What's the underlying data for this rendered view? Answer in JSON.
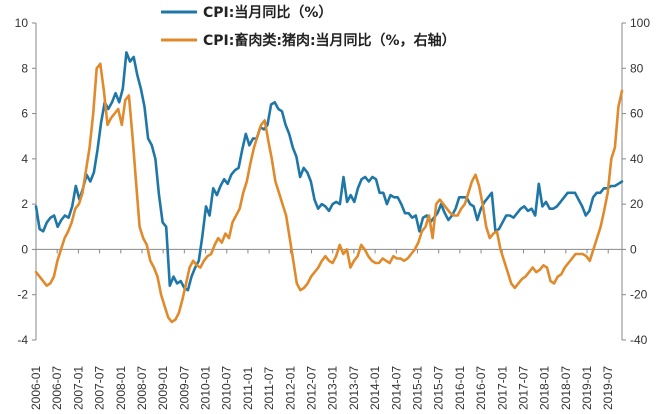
{
  "chart_data": {
    "type": "line",
    "title": "",
    "xlabel": "",
    "ylabel_left": "",
    "ylabel_right": "",
    "ylim_left": [
      -4,
      10
    ],
    "ylim_right": [
      -40,
      100
    ],
    "yticks_left": [
      -4,
      -2,
      0,
      2,
      4,
      6,
      8,
      10
    ],
    "yticks_right": [
      -40,
      -20,
      0,
      20,
      40,
      60,
      80,
      100
    ],
    "x_tick_labels": [
      "2006-01",
      "2006-07",
      "2007-01",
      "2007-07",
      "2008-01",
      "2008-07",
      "2009-01",
      "2009-07",
      "2010-01",
      "2010-07",
      "2011-01",
      "2011-07",
      "2012-01",
      "2012-07",
      "2013-01",
      "2013-07",
      "2014-01",
      "2014-07",
      "2015-01",
      "2015-07",
      "2016-01",
      "2016-07",
      "2017-01",
      "2017-07",
      "2018-01",
      "2018-07",
      "2019-01",
      "2019-07"
    ],
    "grid": false,
    "legend_position": "top-center",
    "series": [
      {
        "name": "CPI:当月同比（%）",
        "axis": "left",
        "color": "#1f77a8",
        "values": [
          1.9,
          0.9,
          0.8,
          1.2,
          1.4,
          1.5,
          1.0,
          1.3,
          1.5,
          1.4,
          1.9,
          2.8,
          2.2,
          2.7,
          3.3,
          3.0,
          3.4,
          4.4,
          5.6,
          6.5,
          6.2,
          6.5,
          6.9,
          6.5,
          7.1,
          8.7,
          8.3,
          8.5,
          7.7,
          7.1,
          6.3,
          4.9,
          4.6,
          4.0,
          2.4,
          1.2,
          1.0,
          -1.6,
          -1.2,
          -1.5,
          -1.4,
          -1.7,
          -1.8,
          -1.2,
          -0.8,
          -0.5,
          0.6,
          1.9,
          1.5,
          2.7,
          2.4,
          2.8,
          3.1,
          2.9,
          3.3,
          3.5,
          3.6,
          4.4,
          5.1,
          4.6,
          4.9,
          4.9,
          5.4,
          5.3,
          5.5,
          6.4,
          6.5,
          6.2,
          6.1,
          5.5,
          5.1,
          4.5,
          4.1,
          3.2,
          3.6,
          3.4,
          3.0,
          2.2,
          1.8,
          2.0,
          1.9,
          1.7,
          2.0,
          2.1,
          2.0,
          3.2,
          2.1,
          2.4,
          2.1,
          2.7,
          3.1,
          3.2,
          3.0,
          3.2,
          3.1,
          2.5,
          2.5,
          2.0,
          2.4,
          2.3,
          2.3,
          2.0,
          1.6,
          1.6,
          1.4,
          1.5,
          0.8,
          1.4,
          1.5,
          1.2,
          1.4,
          1.6,
          2.0,
          1.6,
          1.3,
          1.5,
          1.8,
          2.3,
          2.3,
          2.3,
          2.0,
          1.9,
          1.3,
          1.8,
          2.1,
          2.3,
          2.5,
          0.8,
          0.9,
          1.2,
          1.5,
          1.5,
          1.4,
          1.6,
          1.8,
          1.9,
          1.7,
          1.8,
          1.5,
          2.9,
          1.9,
          2.1,
          1.8,
          1.8,
          1.9,
          2.1,
          2.3,
          2.5,
          2.5,
          2.5,
          2.2,
          1.9,
          1.5,
          1.7,
          2.3,
          2.5,
          2.5,
          2.7,
          2.7,
          2.8,
          2.8,
          2.9,
          3.0
        ]
      },
      {
        "name": "CPI:畜肉类:猪肉:当月同比（%，右轴）",
        "axis": "right",
        "color": "#e08a2c",
        "values": [
          -10,
          -12,
          -14,
          -16,
          -15,
          -12,
          -5,
          0,
          5,
          8,
          12,
          18,
          20,
          25,
          35,
          45,
          60,
          80,
          82,
          70,
          55,
          58,
          60,
          62,
          55,
          66,
          68,
          50,
          30,
          10,
          5,
          2,
          -5,
          -8,
          -12,
          -20,
          -25,
          -30,
          -32,
          -31,
          -28,
          -22,
          -15,
          -8,
          -5,
          -7,
          -8,
          -5,
          -3,
          -2,
          2,
          5,
          3,
          7,
          5,
          12,
          15,
          18,
          25,
          30,
          38,
          45,
          50,
          55,
          57,
          48,
          40,
          30,
          25,
          20,
          15,
          5,
          -5,
          -15,
          -18,
          -17,
          -15,
          -12,
          -10,
          -8,
          -5,
          -3,
          -5,
          -6,
          -3,
          2,
          -2,
          0,
          -8,
          -5,
          -3,
          2,
          0,
          -3,
          -5,
          -6,
          -6,
          -4,
          -5,
          -6,
          -3,
          -4,
          -4,
          -5,
          -4,
          -2,
          0,
          3,
          8,
          10,
          15,
          5,
          20,
          22,
          20,
          18,
          16,
          15,
          15,
          18,
          20,
          25,
          30,
          33,
          28,
          20,
          10,
          5,
          7,
          8,
          0,
          -5,
          -10,
          -15,
          -17,
          -15,
          -13,
          -12,
          -10,
          -8,
          -10,
          -9,
          -7,
          -8,
          -14,
          -15,
          -12,
          -11,
          -8,
          -6,
          -4,
          -2,
          -2,
          -2,
          -3,
          -5,
          0,
          5,
          10,
          17,
          25,
          40,
          45,
          63,
          70
        ]
      }
    ]
  }
}
